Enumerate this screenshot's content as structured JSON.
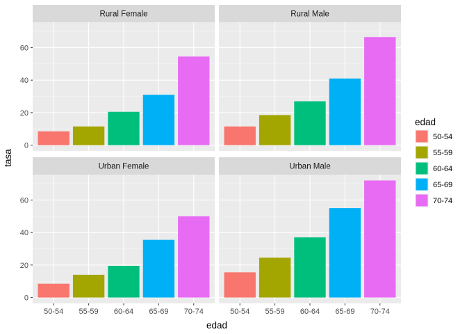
{
  "chart_data": {
    "type": "bar",
    "xlabel": "edad",
    "ylabel": "tasa",
    "categories": [
      "50-54",
      "55-59",
      "60-64",
      "65-69",
      "70-74"
    ],
    "colors": [
      "#F8766D",
      "#A3A500",
      "#00BF7D",
      "#00B0F6",
      "#E76BF3"
    ],
    "ylim": [
      0,
      72
    ],
    "yticks": [
      0,
      20,
      40,
      60
    ],
    "grid": true,
    "legend": {
      "title": "edad",
      "placement": "right",
      "entries": [
        "50-54",
        "55-59",
        "60-64",
        "65-69",
        "70-74"
      ]
    },
    "panels": [
      {
        "strip": "Rural Female",
        "values": [
          8.5,
          11.5,
          20.5,
          31,
          54.5
        ]
      },
      {
        "strip": "Rural Male",
        "values": [
          11.5,
          18.5,
          27,
          41,
          66.5
        ]
      },
      {
        "strip": "Urban Female",
        "values": [
          8.5,
          14,
          19.5,
          35.5,
          50
        ]
      },
      {
        "strip": "Urban Male",
        "values": [
          15.5,
          24.5,
          37,
          55,
          72
        ]
      }
    ]
  }
}
